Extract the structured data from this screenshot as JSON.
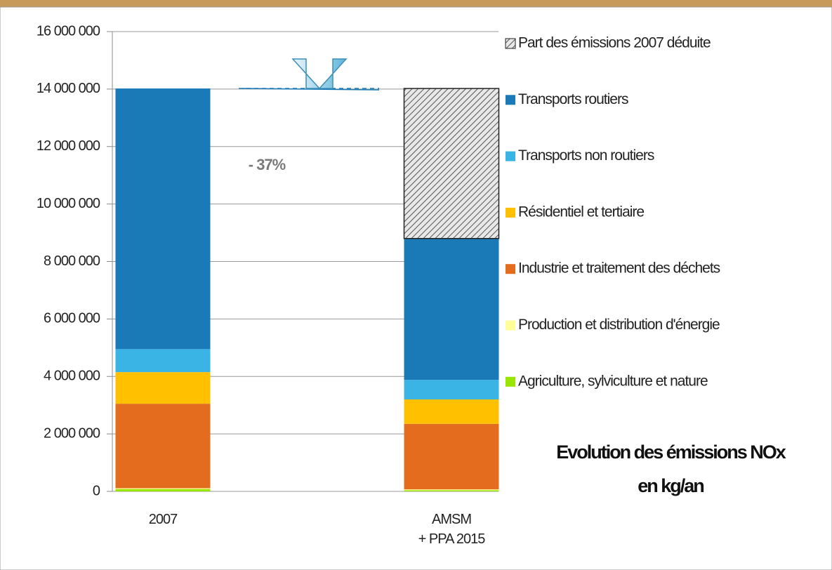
{
  "chart_data": {
    "type": "stacked_bar",
    "title": "Evolution des émissions NOx\nen kg/an",
    "annotation": "- 37%",
    "categories": [
      "2007",
      "AMSM\n+ PPA 2015"
    ],
    "series": [
      {
        "name": "Agriculture, sylviculture et nature",
        "color": "#99e600",
        "values": [
          80000,
          40000
        ]
      },
      {
        "name": "Production et distribution d'énergie",
        "color": "#ffff99",
        "values": [
          30000,
          30000
        ]
      },
      {
        "name": "Industrie et traitement des déchets",
        "color": "#e36c1e",
        "values": [
          2940000,
          2280000
        ]
      },
      {
        "name": "Résidentiel et tertiaire",
        "color": "#ffc000",
        "values": [
          1100000,
          850000
        ]
      },
      {
        "name": "Transports non routiers",
        "color": "#3ab4e4",
        "values": [
          800000,
          680000
        ]
      },
      {
        "name": "Transports routiers",
        "color": "#1a7ab7",
        "values": [
          9070000,
          4920000
        ]
      },
      {
        "name": "Part des émissions 2007 déduite",
        "color": "#9a9a9a",
        "hatch": true,
        "values": [
          0,
          5220000
        ]
      }
    ],
    "ylim": [
      0,
      16000000
    ],
    "yticks": [
      0,
      {
        "value": 2000000,
        "label": "2 000 000"
      },
      {
        "value": 4000000,
        "label": "4 000 000"
      },
      {
        "value": 6000000,
        "label": "6 000 000"
      },
      {
        "value": 8000000,
        "label": "8 000 000"
      },
      {
        "value": 10000000,
        "label": "10 000 000"
      },
      {
        "value": 12000000,
        "label": "12 000 000"
      },
      {
        "value": 14000000,
        "label": "14 000 000"
      },
      {
        "value": 16000000,
        "label": "16 000 000"
      }
    ],
    "grid": true
  }
}
